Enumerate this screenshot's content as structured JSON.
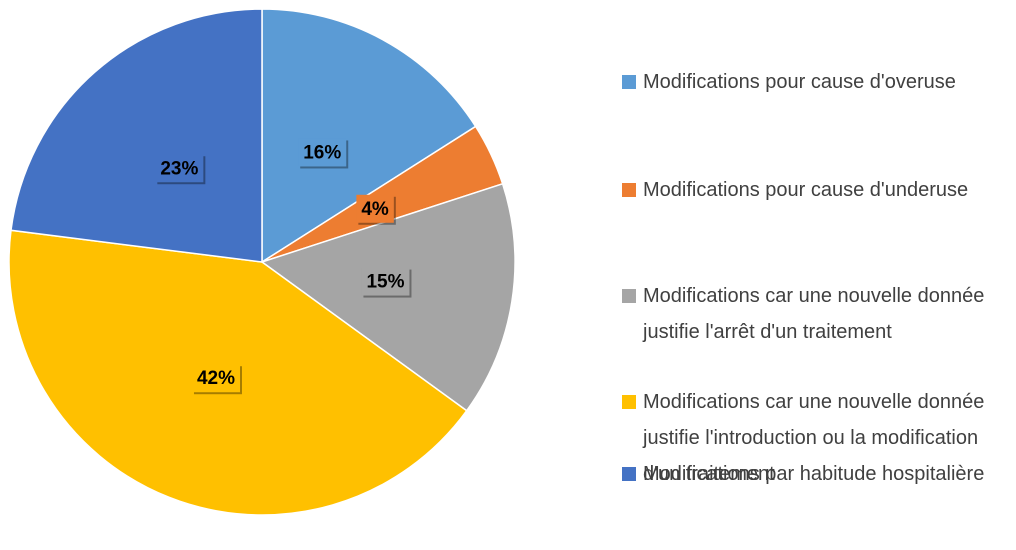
{
  "chart_data": {
    "type": "pie",
    "categories": [
      "Modifications pour cause d'overuse",
      "Modifications pour cause d'underuse",
      "Modifications car une nouvelle donnée justifie l'arrêt d'un traitement",
      "Modifications car une nouvelle donnée justifie l'introduction ou la modification d'un traitement",
      "Modifications par habitude hospitalière"
    ],
    "values": [
      16,
      4,
      15,
      42,
      23
    ],
    "value_labels": [
      "16%",
      "4%",
      "15%",
      "42%",
      "23%"
    ],
    "colors": [
      "#5b9bd5",
      "#ed7d31",
      "#a5a5a5",
      "#ffc000",
      "#4472c4"
    ],
    "legend": "right"
  }
}
